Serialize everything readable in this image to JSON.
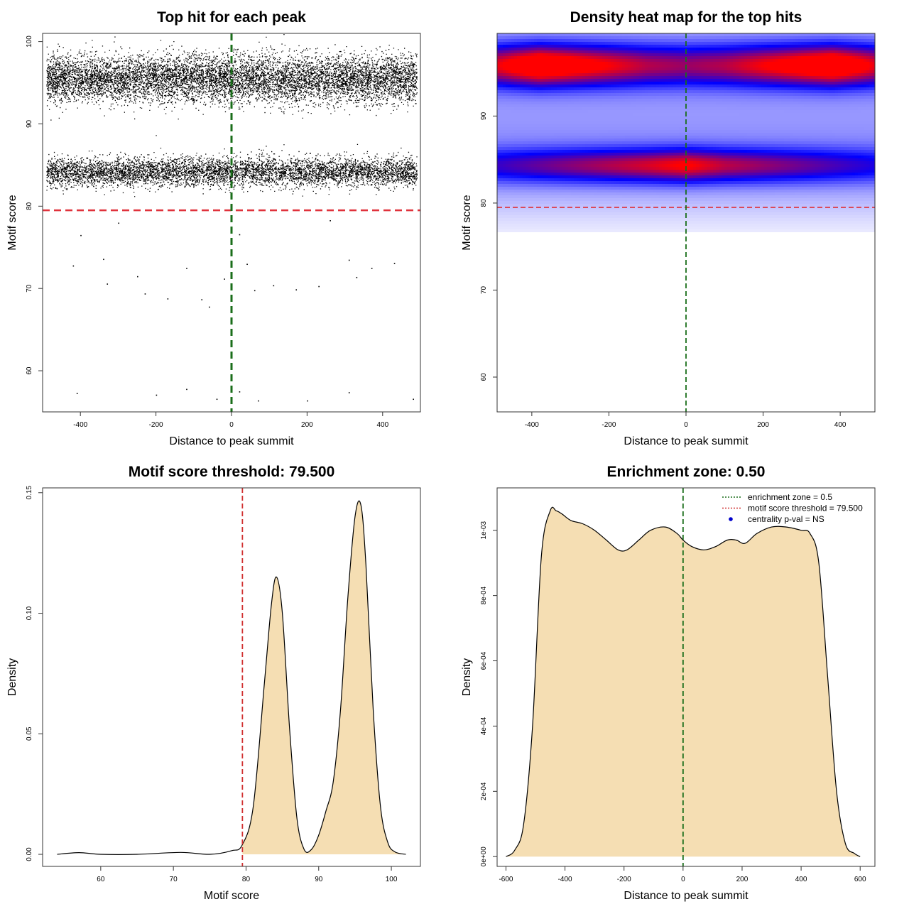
{
  "chart_data": [
    {
      "type": "scatter",
      "title": "Top hit for each peak",
      "xlabel": "Distance to peak summit",
      "ylabel": "Motif score",
      "xlim": [
        -500,
        500
      ],
      "ylim": [
        55,
        101
      ],
      "xticks": [
        -400,
        -200,
        0,
        200,
        400
      ],
      "yticks": [
        60,
        70,
        80,
        90,
        100
      ],
      "clusters": [
        {
          "y_center": 95.5,
          "y_spread": 2.6,
          "x_range": [
            -490,
            490
          ],
          "approx_points": 9000
        },
        {
          "y_center": 84.2,
          "y_spread": 1.6,
          "x_range": [
            -490,
            490
          ],
          "approx_points": 6000
        }
      ],
      "outliers": [
        {
          "x": -420,
          "y": 72.8
        },
        {
          "x": -400,
          "y": 76.5
        },
        {
          "x": -340,
          "y": 73.6
        },
        {
          "x": -330,
          "y": 70.6
        },
        {
          "x": -250,
          "y": 71.5
        },
        {
          "x": -230,
          "y": 69.4
        },
        {
          "x": -170,
          "y": 68.8
        },
        {
          "x": -120,
          "y": 72.5
        },
        {
          "x": -80,
          "y": 68.7
        },
        {
          "x": -60,
          "y": 67.8
        },
        {
          "x": -20,
          "y": 71.2
        },
        {
          "x": 40,
          "y": 73.0
        },
        {
          "x": 60,
          "y": 69.8
        },
        {
          "x": 110,
          "y": 70.4
        },
        {
          "x": 170,
          "y": 69.9
        },
        {
          "x": 230,
          "y": 70.3
        },
        {
          "x": 310,
          "y": 73.5
        },
        {
          "x": 330,
          "y": 71.4
        },
        {
          "x": 370,
          "y": 72.5
        },
        {
          "x": 430,
          "y": 73.1
        },
        {
          "x": -410,
          "y": 57.3
        },
        {
          "x": -200,
          "y": 57.1
        },
        {
          "x": -120,
          "y": 57.8
        },
        {
          "x": -40,
          "y": 56.6
        },
        {
          "x": 20,
          "y": 57.5
        },
        {
          "x": 70,
          "y": 56.4
        },
        {
          "x": 200,
          "y": 56.4
        },
        {
          "x": 310,
          "y": 57.4
        },
        {
          "x": 480,
          "y": 56.6
        },
        {
          "x": -300,
          "y": 78.0
        },
        {
          "x": 20,
          "y": 76.6
        },
        {
          "x": 260,
          "y": 78.3
        }
      ],
      "hlines": [
        {
          "y": 79.5,
          "color": "#e0323c",
          "style": "dashed"
        }
      ],
      "vlines": [
        {
          "x": 0,
          "color": "#1a6e1a",
          "style": "dashed"
        }
      ]
    },
    {
      "type": "heatmap",
      "title": "Density heat map for the top hits",
      "xlabel": "Distance to peak summit",
      "ylabel": "Motif score",
      "xlim": [
        -490,
        490
      ],
      "ylim": [
        56,
        99.5
      ],
      "xticks": [
        -400,
        -200,
        0,
        200,
        400
      ],
      "yticks": [
        60,
        70,
        80,
        90
      ],
      "colors": [
        "#ffffff",
        "#0000ff",
        "#ff0000"
      ],
      "bands": [
        {
          "y_center": 95.8,
          "y_spread": 1.6,
          "intensity_by_x": [
            [
              -490,
              0.7
            ],
            [
              -380,
              1.0
            ],
            [
              -250,
              0.8
            ],
            [
              -100,
              0.6
            ],
            [
              0,
              0.55
            ],
            [
              100,
              0.6
            ],
            [
              250,
              0.8
            ],
            [
              380,
              1.0
            ],
            [
              490,
              0.7
            ]
          ]
        },
        {
          "y_center": 84.3,
          "y_spread": 1.3,
          "intensity_by_x": [
            [
              -490,
              0.35
            ],
            [
              -300,
              0.5
            ],
            [
              -100,
              0.65
            ],
            [
              0,
              0.75
            ],
            [
              100,
              0.6
            ],
            [
              300,
              0.45
            ],
            [
              490,
              0.3
            ]
          ]
        }
      ],
      "hlines": [
        {
          "y": 79.5,
          "color": "#e0323c",
          "style": "dashed"
        }
      ],
      "vlines": [
        {
          "x": 0,
          "color": "#1a6e1a",
          "style": "dashed"
        }
      ]
    },
    {
      "type": "area",
      "title": "Motif score threshold: 79.500",
      "xlabel": "Motif score",
      "ylabel": "Density",
      "xlim": [
        52,
        104
      ],
      "ylim": [
        -0.005,
        0.152
      ],
      "xticks": [
        60,
        70,
        80,
        90,
        100
      ],
      "yticks": [
        0.0,
        0.05,
        0.1,
        0.15
      ],
      "ytick_labels": [
        "0.00",
        "0.05",
        "0.10",
        "0.15"
      ],
      "x": [
        54,
        57,
        60,
        65,
        71,
        75,
        78,
        79.5,
        81,
        82.5,
        83.5,
        84.2,
        85,
        86,
        87,
        88,
        89,
        90,
        91,
        92,
        93,
        94,
        95,
        95.8,
        96.5,
        97.5,
        98.5,
        99.5,
        100.5,
        102
      ],
      "y": [
        0.0,
        0.0007,
        0.0,
        0.0,
        0.0008,
        0.0,
        0.0015,
        0.004,
        0.02,
        0.07,
        0.104,
        0.115,
        0.1,
        0.052,
        0.015,
        0.002,
        0.002,
        0.008,
        0.018,
        0.03,
        0.06,
        0.106,
        0.14,
        0.145,
        0.12,
        0.06,
        0.02,
        0.005,
        0.001,
        0.0
      ],
      "fill": "#f5deb3",
      "shade_from": 79.5,
      "vlines": [
        {
          "x": 79.5,
          "color": "#d03030",
          "style": "dashed"
        }
      ]
    },
    {
      "type": "area",
      "title": "Enrichment zone: 0.50",
      "xlabel": "Distance to peak summit",
      "ylabel": "Density",
      "xlim": [
        -630,
        650
      ],
      "ylim": [
        -3e-05,
        0.00113
      ],
      "xticks": [
        -600,
        -400,
        -200,
        0,
        200,
        400,
        600
      ],
      "yticks": [
        0,
        0.0002,
        0.0004,
        0.0006,
        0.0008,
        0.001
      ],
      "ytick_labels": [
        "0e+00",
        "2e-04",
        "4e-04",
        "6e-04",
        "8e-04",
        "1e-03"
      ],
      "x": [
        -600,
        -570,
        -540,
        -510,
        -480,
        -450,
        -430,
        -410,
        -380,
        -340,
        -300,
        -260,
        -220,
        -190,
        -150,
        -110,
        -60,
        -20,
        0,
        30,
        70,
        110,
        150,
        180,
        210,
        250,
        300,
        350,
        400,
        430,
        460,
        490,
        520,
        550,
        580,
        600
      ],
      "y": [
        0.0,
        2e-05,
        0.0001,
        0.0004,
        0.00092,
        0.00106,
        0.00106,
        0.00105,
        0.00103,
        0.00102,
        0.001,
        0.00097,
        0.00094,
        0.00094,
        0.00097,
        0.001,
        0.00101,
        0.00099,
        0.00097,
        0.00095,
        0.00094,
        0.00095,
        0.00097,
        0.00097,
        0.00096,
        0.00099,
        0.00101,
        0.00101,
        0.001,
        0.00099,
        0.0009,
        0.00055,
        0.0002,
        4e-05,
        1e-05,
        0.0
      ],
      "fill": "#f5deb3",
      "vlines": [
        {
          "x": 0,
          "color": "#1a6e1a",
          "style": "dashed"
        }
      ],
      "legend": {
        "position": "top-right",
        "entries": [
          {
            "label": "enrichment zone = 0.5",
            "color": "#1a6e1a",
            "kind": "dotted-line"
          },
          {
            "label": "motif score threshold = 79.500",
            "color": "#d03030",
            "kind": "dotted-line"
          },
          {
            "label": "centrality p-val = NS",
            "color": "#0000cc",
            "kind": "point"
          }
        ]
      }
    }
  ]
}
